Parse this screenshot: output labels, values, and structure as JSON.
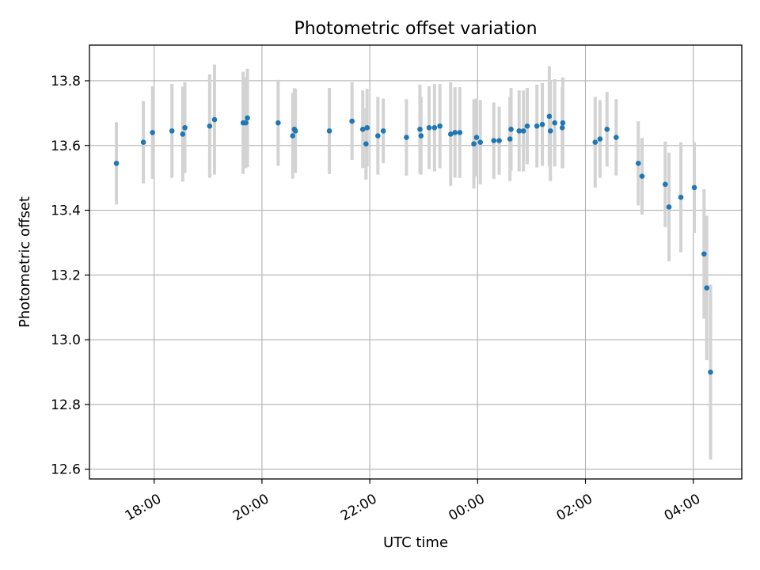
{
  "chart_data": {
    "type": "scatter",
    "title": "Photometric offset variation",
    "xlabel": "UTC time",
    "ylabel": "Photometric offset",
    "x_unit": "hours (UTC, continuing past midnight)",
    "xlim": [
      16.8,
      28.9
    ],
    "ylim": [
      12.57,
      13.91
    ],
    "xticks": [
      {
        "value": 18,
        "label": "18:00"
      },
      {
        "value": 20,
        "label": "20:00"
      },
      {
        "value": 22,
        "label": "22:00"
      },
      {
        "value": 24,
        "label": "00:00"
      },
      {
        "value": 26,
        "label": "02:00"
      },
      {
        "value": 28,
        "label": "04:00"
      }
    ],
    "yticks": [
      {
        "value": 12.6,
        "label": "12.6"
      },
      {
        "value": 12.8,
        "label": "12.8"
      },
      {
        "value": 13.0,
        "label": "13.0"
      },
      {
        "value": 13.2,
        "label": "13.2"
      },
      {
        "value": 13.4,
        "label": "13.4"
      },
      {
        "value": 13.6,
        "label": "13.6"
      },
      {
        "value": 13.8,
        "label": "13.8"
      }
    ],
    "grid": true,
    "colors": {
      "points": "#1f77b4",
      "errorbars": "#d3d3d3"
    },
    "series": [
      {
        "x": [
          17.3,
          17.8,
          17.97,
          18.33,
          18.53,
          18.57,
          19.03,
          19.12,
          19.65,
          19.7,
          19.73,
          20.3,
          20.57,
          20.6,
          20.62,
          21.25,
          21.67,
          21.87,
          21.93,
          21.95,
          22.15,
          22.25,
          22.68,
          22.93,
          22.95,
          23.1,
          23.2,
          23.3,
          23.5,
          23.58,
          23.67,
          23.93,
          23.98,
          24.05,
          24.3,
          24.4,
          24.6,
          24.62,
          24.77,
          24.85,
          24.92,
          25.1,
          25.2,
          25.33,
          25.35,
          25.43,
          25.57,
          25.58,
          26.18,
          26.27,
          26.4,
          26.57,
          26.98,
          27.05,
          27.48,
          27.55,
          27.77,
          28.02,
          28.2,
          28.25,
          28.32
        ],
        "y": [
          13.545,
          13.61,
          13.64,
          13.645,
          13.635,
          13.655,
          13.66,
          13.68,
          13.67,
          13.67,
          13.685,
          13.67,
          13.63,
          13.65,
          13.645,
          13.645,
          13.675,
          13.65,
          13.605,
          13.655,
          13.63,
          13.645,
          13.625,
          13.65,
          13.63,
          13.655,
          13.655,
          13.66,
          13.635,
          13.64,
          13.64,
          13.605,
          13.625,
          13.61,
          13.615,
          13.615,
          13.62,
          13.65,
          13.645,
          13.645,
          13.66,
          13.66,
          13.665,
          13.69,
          13.645,
          13.67,
          13.655,
          13.67,
          13.61,
          13.62,
          13.65,
          13.625,
          13.545,
          13.505,
          13.48,
          13.41,
          13.44,
          13.47,
          13.265,
          13.16,
          12.9
        ],
        "yerr": [
          0.127,
          0.127,
          0.143,
          0.145,
          0.147,
          0.14,
          0.16,
          0.17,
          0.158,
          0.14,
          0.152,
          0.133,
          0.132,
          0.127,
          0.13,
          0.133,
          0.12,
          0.12,
          0.11,
          0.12,
          0.12,
          0.1,
          0.118,
          0.138,
          0.12,
          0.128,
          0.135,
          0.13,
          0.16,
          0.14,
          0.14,
          0.138,
          0.12,
          0.13,
          0.118,
          0.105,
          0.13,
          0.128,
          0.125,
          0.125,
          0.118,
          0.128,
          0.128,
          0.155,
          0.155,
          0.135,
          0.125,
          0.14,
          0.14,
          0.12,
          0.115,
          0.118,
          0.13,
          0.118,
          0.132,
          0.168,
          0.17,
          0.14,
          0.2,
          0.223,
          0.27
        ]
      }
    ]
  }
}
